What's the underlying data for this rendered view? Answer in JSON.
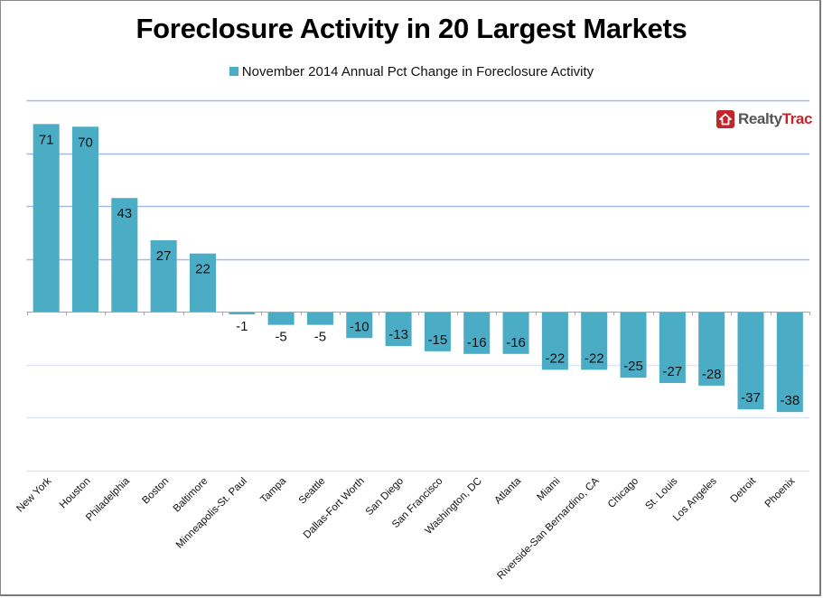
{
  "chart_data": {
    "type": "bar",
    "title": "Foreclosure Activity in 20 Largest Markets",
    "xlabel": "",
    "ylabel": "",
    "ylim": [
      -60,
      80
    ],
    "gridlines": [
      80,
      60,
      40,
      20,
      -20,
      -40,
      -60
    ],
    "grid": true,
    "y_tick_labels_shown": false,
    "legend_position": "top-center",
    "series": [
      {
        "name": "November 2014 Annual Pct Change in Foreclosure Activity",
        "color": "#4BACC6",
        "values": [
          71,
          70,
          43,
          27,
          22,
          -1,
          -5,
          -5,
          -10,
          -13,
          -15,
          -16,
          -16,
          -22,
          -22,
          -25,
          -27,
          -28,
          -37,
          -38
        ]
      }
    ],
    "categories": [
      "New York",
      "Houston",
      "Philadelphia",
      "Boston",
      "Baltimore",
      "Minneapolis-St. Paul",
      "Tampa",
      "Seattle",
      "Dallas-Fort Worth",
      "San Diego",
      "San Francisco",
      "Washington, DC",
      "Atlanta",
      "Miami",
      "Riverside-San Bernardino, CA",
      "Chicago",
      "St. Louis",
      "Los Angeles",
      "Detroit",
      "Phoenix"
    ],
    "data_labels": [
      "71",
      "70",
      "43",
      "27",
      "22",
      "-1",
      "-5",
      "-5",
      "-10",
      "-13",
      "-15",
      "-16",
      "-16",
      "-22",
      "-22",
      "-25",
      "-27",
      "-28",
      "-37",
      "-38"
    ]
  },
  "legend": {
    "label": "November 2014 Annual Pct Change in Foreclosure Activity",
    "color": "#4BACC6"
  },
  "logo": {
    "icon": "house-icon",
    "part1": "Realty",
    "part2": "Trac",
    "brand_color": "#C0262C"
  },
  "colors": {
    "bar": "#4BACC6",
    "gridline_upper": "#A3BCE6",
    "gridline_lower": "#DDE5F3",
    "axis": "#A6A6A6"
  }
}
